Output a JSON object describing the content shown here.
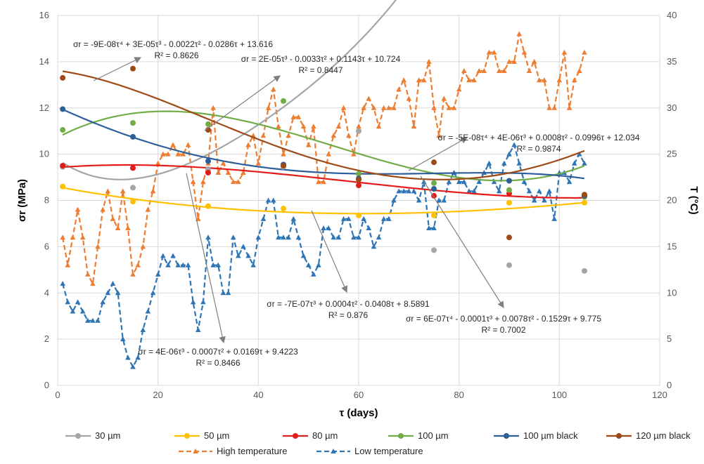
{
  "chart_data": {
    "type": "scatter",
    "xlabel": "τ (days)",
    "ylabel_left": "σr (MPa)",
    "ylabel_right": "T (°C)",
    "xlim": [
      0,
      120
    ],
    "ylim_left": [
      0,
      16
    ],
    "ylim_right": [
      0,
      40
    ],
    "xticks": [
      "0",
      "20",
      "40",
      "60",
      "80",
      "100",
      "120"
    ],
    "yticks_left": [
      "0",
      "2",
      "4",
      "6",
      "8",
      "10",
      "12",
      "14",
      "16"
    ],
    "yticks_right": [
      "0",
      "5",
      "10",
      "15",
      "20",
      "25",
      "30",
      "35",
      "40"
    ],
    "grid": true,
    "legend_position": "bottom",
    "series": [
      {
        "name": "30 µm",
        "color": "#A5A5A5",
        "x": [
          1,
          15,
          30,
          45,
          60,
          75,
          90,
          105
        ],
        "y": [
          9.45,
          8.55,
          9.35,
          9.45,
          11.0,
          5.85,
          5.2,
          4.95
        ],
        "fit": {
          "type": "poly",
          "coef": [
            9.775,
            -0.1529,
            0.0078,
            -0.0001,
            6e-07
          ],
          "x0": 1,
          "x1": 105
        }
      },
      {
        "name": "50 µm",
        "color": "#FFC000",
        "x": [
          1,
          15,
          30,
          45,
          60,
          75,
          90,
          105
        ],
        "y": [
          8.6,
          7.95,
          7.75,
          7.65,
          7.35,
          7.35,
          7.9,
          7.9
        ],
        "fit": {
          "type": "poly",
          "coef": [
            8.5891,
            -0.0408,
            0.0004,
            -7e-07
          ],
          "x0": 1,
          "x1": 105
        }
      },
      {
        "name": "80 µm",
        "color": "#E31B1B",
        "x": [
          1,
          15,
          30,
          45,
          60,
          75,
          90,
          105
        ],
        "y": [
          9.5,
          9.4,
          9.2,
          9.55,
          8.65,
          8.2,
          8.3,
          8.2
        ],
        "fit": {
          "type": "poly",
          "coef": [
            9.4223,
            0.0169,
            -0.0007,
            4e-06
          ],
          "x0": 1,
          "x1": 105
        }
      },
      {
        "name": "100 µm",
        "color": "#70AD47",
        "x": [
          1,
          15,
          30,
          45,
          60,
          75,
          90,
          105
        ],
        "y": [
          11.05,
          11.35,
          11.3,
          12.3,
          9.15,
          8.75,
          8.45,
          8.15
        ],
        "fit": {
          "type": "poly",
          "coef": [
            10.724,
            0.1143,
            -0.0033,
            2e-05
          ],
          "x0": 1,
          "x1": 105
        }
      },
      {
        "name": "100 µm black",
        "color": "#2E5E9A",
        "x": [
          1,
          15,
          30,
          45,
          60,
          75,
          90,
          105
        ],
        "y": [
          11.95,
          10.75,
          9.7,
          9.55,
          8.95,
          8.5,
          8.85,
          8.2
        ],
        "fit": {
          "type": "poly",
          "coef": [
            12.034,
            -0.0996,
            0.0008,
            4e-06,
            -5e-08
          ],
          "x0": 1,
          "x1": 105
        }
      },
      {
        "name": "120 µm black",
        "color": "#9E4A17",
        "x": [
          1,
          15,
          30,
          45,
          60,
          75,
          90,
          105
        ],
        "y": [
          13.3,
          13.7,
          11.05,
          9.5,
          8.9,
          9.65,
          6.4,
          8.25
        ],
        "fit": {
          "type": "poly",
          "coef": [
            13.616,
            -0.0286,
            -0.0022,
            3e-05,
            -9e-08
          ],
          "x0": 1,
          "x1": 105
        }
      }
    ],
    "temperature_series": [
      {
        "name": "High temperature",
        "color": "#ED7D31",
        "x": [
          1,
          2,
          3,
          4,
          5,
          6,
          7,
          8,
          9,
          10,
          11,
          12,
          13,
          14,
          15,
          16,
          17,
          18,
          19,
          20,
          21,
          22,
          23,
          24,
          25,
          26,
          27,
          28,
          29,
          30,
          31,
          32,
          33,
          34,
          35,
          36,
          37,
          38,
          39,
          40,
          41,
          42,
          43,
          44,
          45,
          46,
          47,
          48,
          49,
          50,
          51,
          52,
          53,
          54,
          55,
          56,
          57,
          58,
          59,
          60,
          61,
          62,
          63,
          64,
          65,
          66,
          67,
          68,
          69,
          70,
          71,
          72,
          73,
          74,
          75,
          76,
          77,
          78,
          79,
          80,
          81,
          82,
          83,
          84,
          85,
          86,
          87,
          88,
          89,
          90,
          91,
          92,
          93,
          94,
          95,
          96,
          97,
          98,
          99,
          100,
          101,
          102,
          103,
          104,
          105
        ],
        "y": [
          16,
          13,
          16,
          19,
          16,
          12,
          11,
          15,
          19,
          21,
          18,
          17,
          21,
          17,
          12,
          13,
          15,
          19,
          21,
          24,
          25,
          25,
          26,
          25,
          25,
          26,
          22,
          18,
          22,
          24,
          30,
          23,
          24,
          23,
          22,
          22,
          23,
          26,
          27,
          24,
          27,
          30,
          32,
          28,
          25,
          27,
          29,
          29,
          28,
          26,
          28,
          22,
          22,
          25,
          27,
          28,
          30,
          27,
          25,
          28,
          30,
          31,
          30,
          28,
          30,
          30,
          30,
          32,
          33,
          31,
          28,
          33,
          33,
          35,
          30,
          27,
          31,
          30,
          30,
          32,
          34,
          33,
          33,
          34,
          34,
          36,
          36,
          34,
          34,
          35,
          35,
          38,
          36,
          34,
          35,
          33,
          33,
          30,
          30,
          33,
          36,
          30,
          33,
          34,
          36
        ],
        "y_axis": "right"
      },
      {
        "name": "Low temperature",
        "color": "#2E75B6",
        "x": [
          1,
          2,
          3,
          4,
          5,
          6,
          7,
          8,
          9,
          10,
          11,
          12,
          13,
          14,
          15,
          16,
          17,
          18,
          19,
          20,
          21,
          22,
          23,
          24,
          25,
          26,
          27,
          28,
          29,
          30,
          31,
          32,
          33,
          34,
          35,
          36,
          37,
          38,
          39,
          40,
          41,
          42,
          43,
          44,
          45,
          46,
          47,
          48,
          49,
          50,
          51,
          52,
          53,
          54,
          55,
          56,
          57,
          58,
          59,
          60,
          61,
          62,
          63,
          64,
          65,
          66,
          67,
          68,
          69,
          70,
          71,
          72,
          73,
          74,
          75,
          76,
          77,
          78,
          79,
          80,
          81,
          82,
          83,
          84,
          85,
          86,
          87,
          88,
          89,
          90,
          91,
          92,
          93,
          94,
          95,
          96,
          97,
          98,
          99,
          100,
          101,
          102,
          103,
          104,
          105
        ],
        "y": [
          11,
          9,
          8,
          9,
          8,
          7,
          7,
          7,
          9,
          10,
          11,
          10,
          5,
          3,
          2,
          3,
          6,
          8,
          10,
          12,
          14,
          13,
          14,
          13,
          13,
          13,
          9,
          6,
          9,
          16,
          13,
          13,
          10,
          10,
          16,
          14,
          15,
          14,
          13,
          16,
          18,
          20,
          20,
          16,
          16,
          16,
          18,
          16,
          14,
          13,
          12,
          13,
          17,
          17,
          16,
          16,
          18,
          18,
          16,
          16,
          18,
          17,
          15,
          16,
          18,
          18,
          20,
          21,
          21,
          21,
          21,
          20,
          22,
          17,
          17,
          20,
          20,
          22,
          23,
          22,
          22,
          21,
          21,
          22,
          23,
          24,
          22,
          21,
          24,
          25,
          26,
          24,
          22,
          21,
          20,
          21,
          20,
          21,
          18,
          23,
          23,
          22,
          24,
          25,
          24
        ],
        "y_axis": "right"
      }
    ],
    "annotations": [
      {
        "line1": "σr = -9E-08τ⁴ + 3E-05τ³ - 0.0022τ² - 0.0286τ + 13.616",
        "line2": "R² = 0.8626"
      },
      {
        "line1": "σr = 2E-05τ³ - 0.0033τ² + 0.1143τ + 10.724",
        "line2": "R² = 0.8447"
      },
      {
        "line1": "σr = -5E-08τ⁴ + 4E-06τ³ + 0.0008τ² - 0.0996τ + 12.034",
        "line2": "R² = 0.9874"
      },
      {
        "line1": "σr = -7E-07τ³ + 0.0004τ² - 0.0408τ + 8.5891",
        "line2": "R² = 0.876"
      },
      {
        "line1": "σr = 6E-07τ⁴ - 0.0001τ³ + 0.0078τ² - 0.1529τ + 9.775",
        "line2": "R² = 0.7002"
      },
      {
        "line1": "σr = 4E-06τ³ - 0.0007τ² + 0.0169τ + 9.4223",
        "line2": "R² = 0.8466"
      }
    ]
  }
}
